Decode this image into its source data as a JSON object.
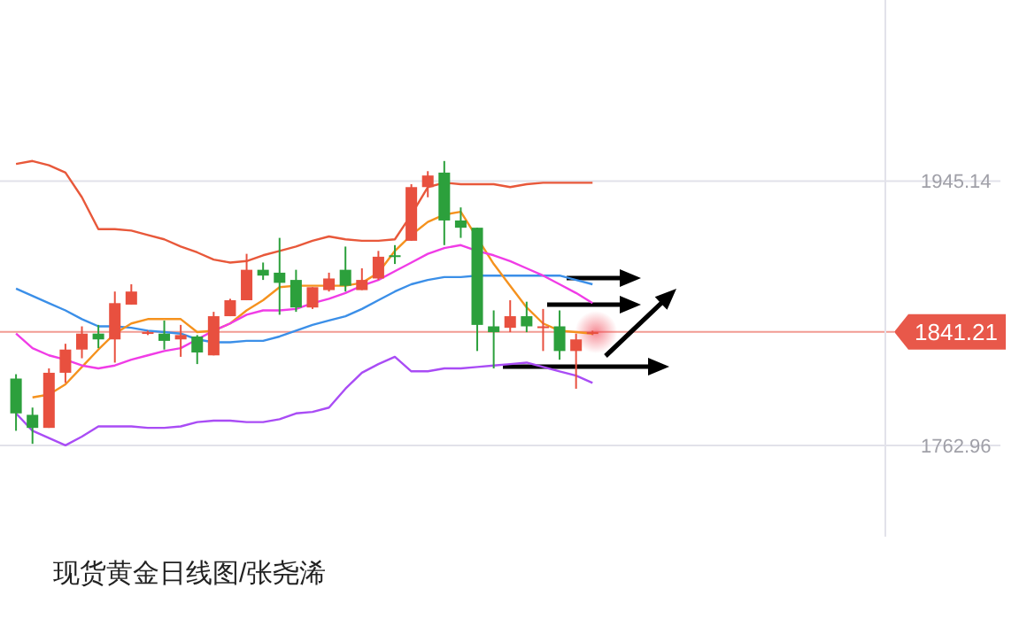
{
  "chart_data": {
    "type": "candlestick",
    "title": "现货黄金日线图/张尧浠",
    "categories": [
      null,
      null,
      null,
      null,
      null,
      null,
      null,
      null,
      null,
      null,
      null,
      null,
      null,
      null,
      null,
      null,
      null,
      null,
      null,
      null,
      null,
      null,
      null,
      null,
      null,
      null,
      null,
      null,
      null,
      null,
      null,
      null,
      null,
      null,
      null,
      null
    ],
    "ohlc": [
      [
        1809,
        1812,
        1773,
        1785
      ],
      [
        1784,
        1789,
        1764,
        1775
      ],
      [
        1775,
        1816,
        1775,
        1813
      ],
      [
        1813,
        1833,
        1806,
        1829
      ],
      [
        1829,
        1845,
        1823,
        1840
      ],
      [
        1840,
        1846,
        1830,
        1836
      ],
      [
        1836,
        1869,
        1820,
        1861
      ],
      [
        1860,
        1874,
        1860,
        1869
      ],
      [
        1840,
        1842,
        1839,
        1841
      ],
      [
        1840,
        1849,
        1829,
        1835
      ],
      [
        1836,
        1846,
        1824,
        1839
      ],
      [
        1838,
        1839,
        1819,
        1827
      ],
      [
        1825,
        1855,
        1825,
        1852
      ],
      [
        1852,
        1864,
        1852,
        1863
      ],
      [
        1863,
        1895,
        1863,
        1884
      ],
      [
        1884,
        1889,
        1877,
        1880
      ],
      [
        1882,
        1906,
        1853,
        1875
      ],
      [
        1877,
        1884,
        1855,
        1858
      ],
      [
        1858,
        1872,
        1857,
        1872
      ],
      [
        1870,
        1882,
        1869,
        1878
      ],
      [
        1884,
        1900,
        1869,
        1873
      ],
      [
        1870,
        1885,
        1870,
        1877
      ],
      [
        1878,
        1897,
        1877,
        1893
      ],
      [
        1894,
        1901,
        1888,
        1893
      ],
      [
        1904,
        1943,
        1904,
        1941
      ],
      [
        1941,
        1952,
        1934,
        1949
      ],
      [
        1951,
        1959,
        1901,
        1918
      ],
      [
        1918,
        1927,
        1906,
        1913
      ],
      [
        1913,
        1913,
        1828,
        1846
      ],
      [
        1845,
        1856,
        1816,
        1841
      ],
      [
        1844,
        1863,
        1841,
        1852
      ],
      [
        1852,
        1862,
        1841,
        1845
      ],
      [
        1844,
        1857,
        1828,
        1845
      ],
      [
        1845,
        1856,
        1822,
        1828
      ],
      [
        1828,
        1840,
        1802,
        1836
      ],
      [
        1840,
        1842,
        1839,
        1841
      ]
    ],
    "series": [
      {
        "type": "line",
        "color": "#e8583a",
        "values": [
          1957,
          1959,
          1956,
          1951,
          1934,
          1912,
          1912,
          1911,
          1908,
          1905,
          1900,
          1896,
          1891,
          1889,
          1890,
          1894,
          1897,
          1900,
          1904,
          1907,
          1905,
          1904,
          1904,
          1905,
          1922,
          1941,
          1944,
          1943,
          1943,
          1943,
          1941,
          1943,
          1944,
          1944,
          1944,
          1944
        ]
      },
      {
        "type": "line",
        "color": "#3b8fe8",
        "values": [
          1871,
          1866,
          1861,
          1856,
          1850,
          1845,
          1845,
          1844,
          1842,
          1841,
          1840,
          1836,
          1834,
          1834,
          1835,
          1835,
          1838,
          1842,
          1846,
          1849,
          1852,
          1857,
          1863,
          1869,
          1874,
          1877,
          1879,
          1879,
          1880,
          1880,
          1880,
          1880,
          1880,
          1880,
          1877,
          1874
        ]
      },
      {
        "type": "line",
        "color": "#a94cf5",
        "values": [
          1785,
          1773,
          1768,
          1763,
          1769,
          1776,
          1776,
          1776,
          1775,
          1775,
          1776,
          1779,
          1780,
          1780,
          1779,
          1779,
          1781,
          1785,
          1786,
          1789,
          1802,
          1813,
          1819,
          1824,
          1814,
          1814,
          1816,
          1816,
          1817,
          1818,
          1819,
          1820,
          1817,
          1814,
          1811,
          1806
        ]
      },
      {
        "type": "line",
        "color": "#f5921e",
        "values": [
          null,
          1796,
          1798,
          1805,
          1817,
          1829,
          1840,
          1847,
          1850,
          1850,
          1850,
          1841,
          1842,
          1847,
          1856,
          1863,
          1872,
          1873,
          1873,
          1873,
          1873,
          1875,
          1882,
          1897,
          1908,
          1917,
          1922,
          1924,
          null,
          1888,
          1873,
          1858,
          1847,
          1842,
          1841,
          1840
        ]
      },
      {
        "type": "line",
        "color": "#f03ce6",
        "values": [
          1840,
          1830,
          1825,
          1822,
          1818,
          1816,
          1818,
          1822,
          1825,
          1828,
          1830,
          1836,
          1842,
          1847,
          1853,
          1856,
          1856,
          1857,
          1861,
          1864,
          1868,
          1873,
          1877,
          1883,
          1889,
          1895,
          1899,
          1901,
          1897,
          1894,
          1890,
          1885,
          1880,
          1874,
          1868,
          1861
        ]
      }
    ],
    "ylim": [
      1700,
      2070
    ],
    "yticks": [
      1945.14,
      1762.96
    ],
    "grid": "y",
    "ref_lines": [
      {
        "axis": "y",
        "value": 1841.21,
        "label": "1841.21",
        "color": "#e8584a"
      }
    ],
    "tick_labels": "y"
  }
}
